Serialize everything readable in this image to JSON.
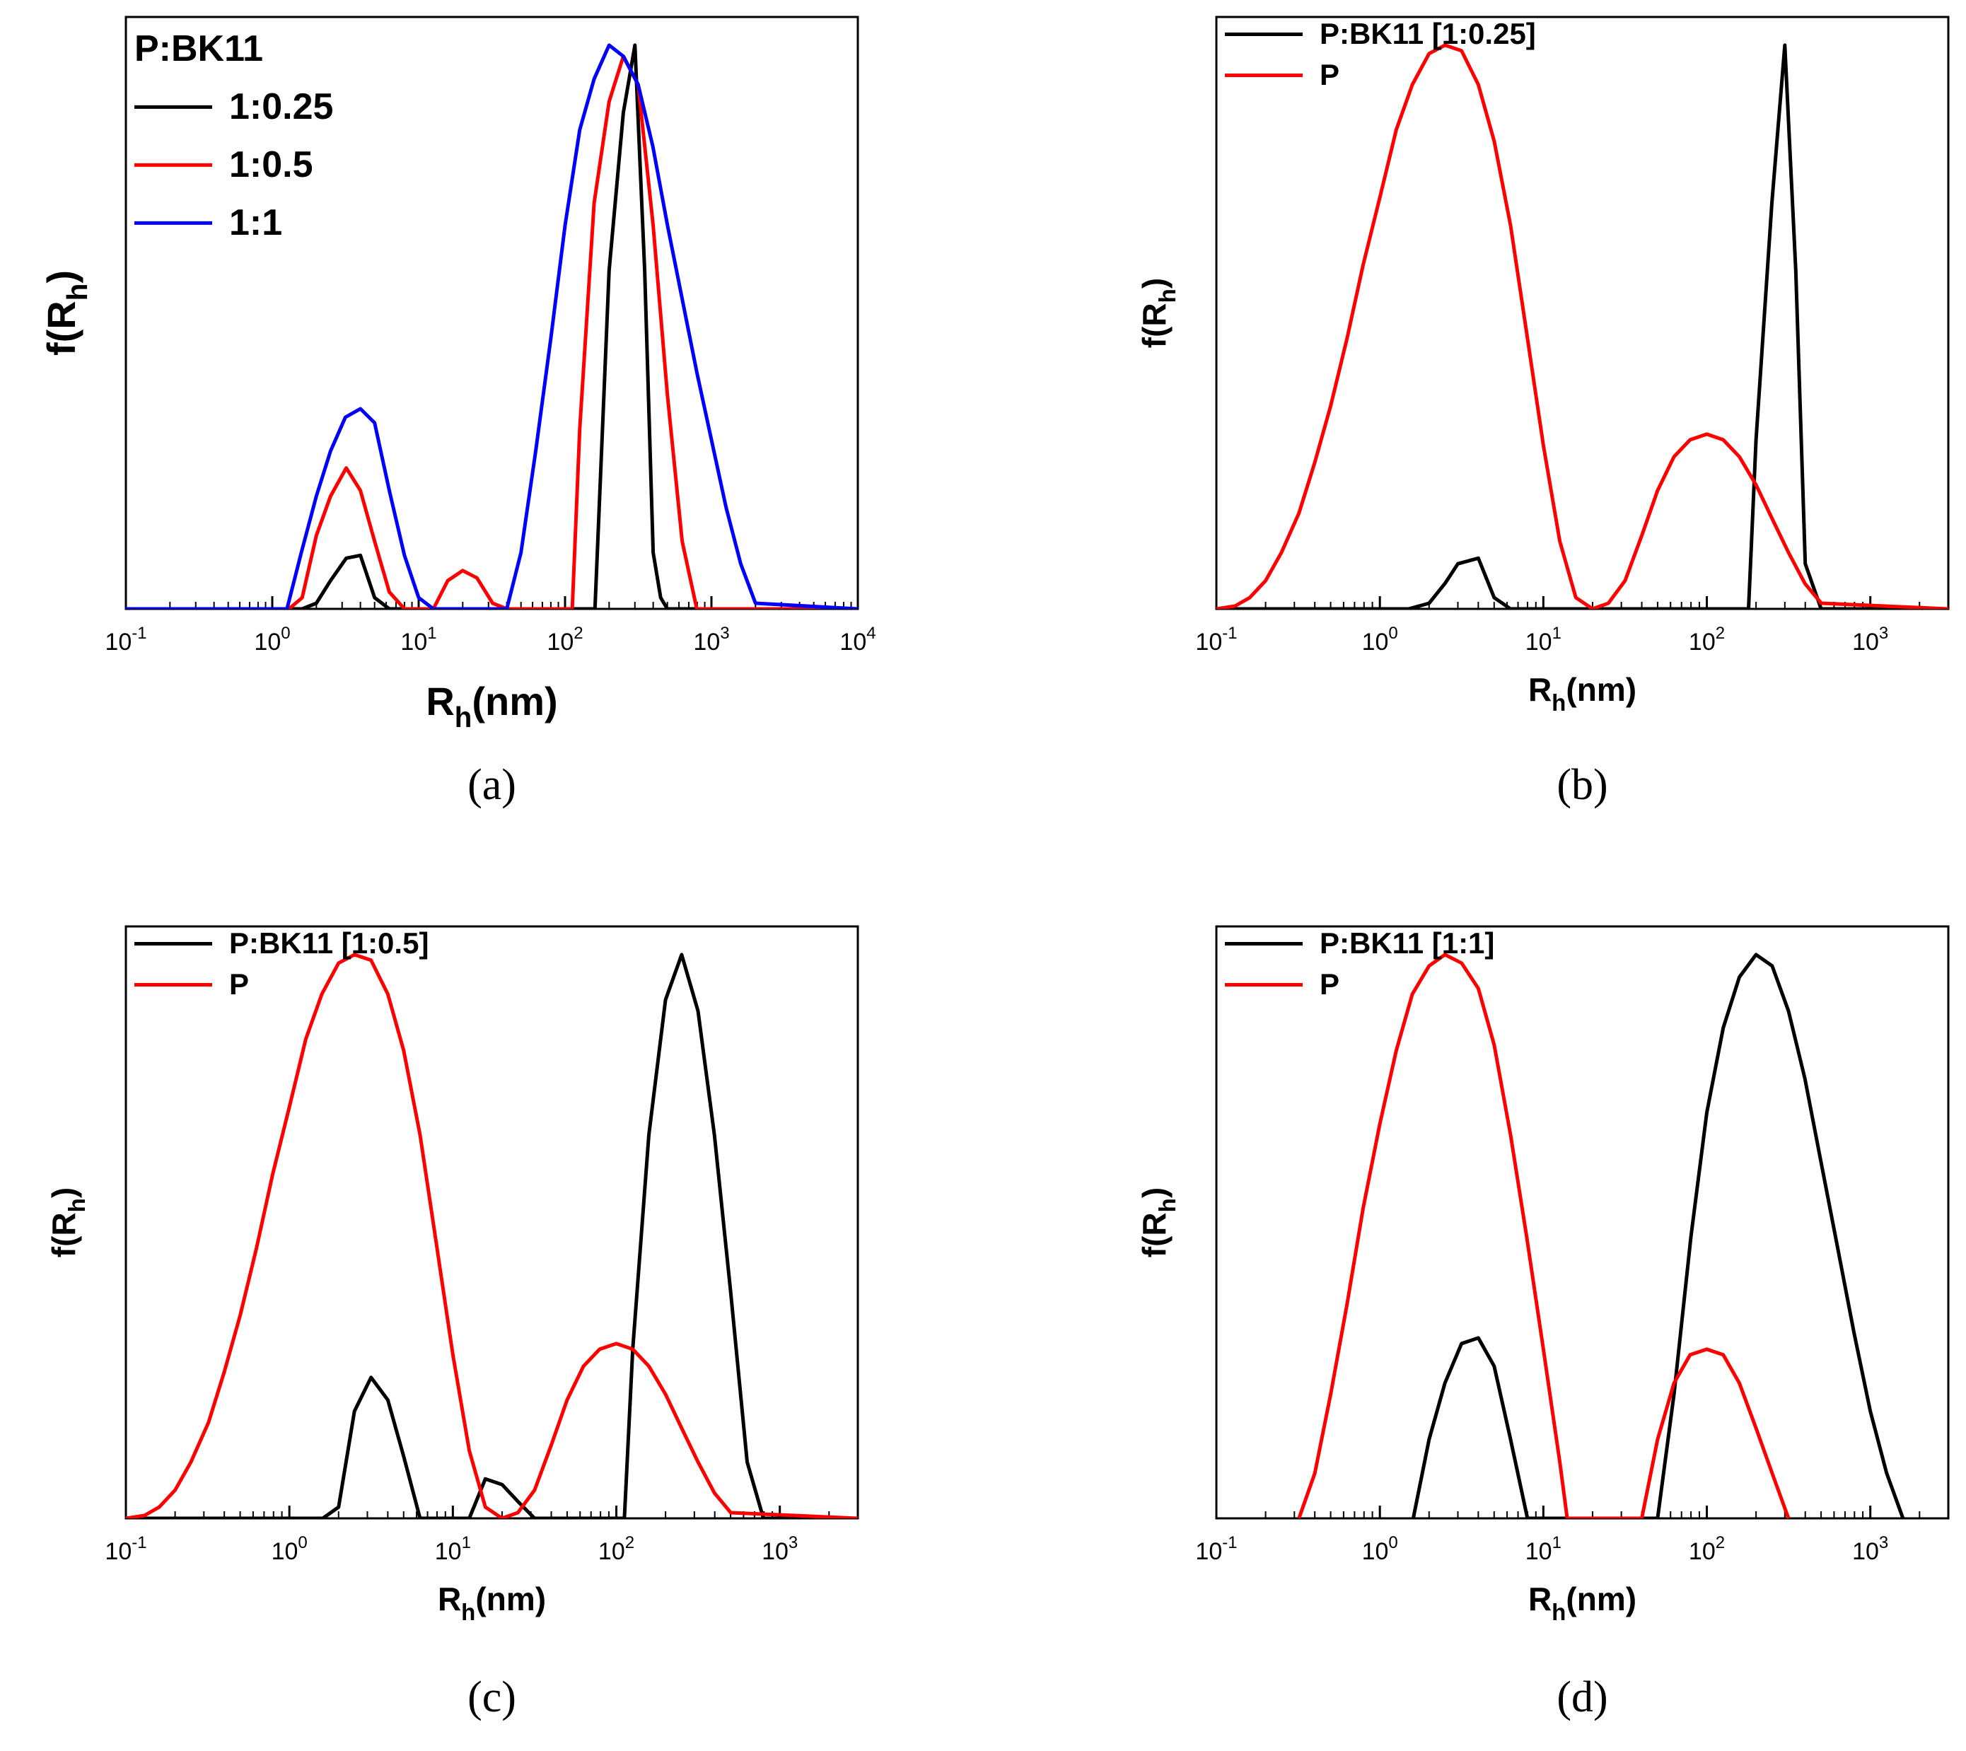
{
  "figure": {
    "colors": {
      "black": "#000000",
      "red": "#ff0000",
      "blue": "#0000ff"
    }
  },
  "chart_data": [
    {
      "id": "a",
      "type": "line",
      "panel_label": "(a)",
      "xscale": "log",
      "xlim": [
        0.1,
        10000
      ],
      "x_ticks": [
        {
          "value": 0.1,
          "base": "10",
          "exp": "-1"
        },
        {
          "value": 1,
          "base": "10",
          "exp": "0"
        },
        {
          "value": 10,
          "base": "10",
          "exp": "1"
        },
        {
          "value": 100,
          "base": "10",
          "exp": "2"
        },
        {
          "value": 1000,
          "base": "10",
          "exp": "3"
        },
        {
          "value": 10000,
          "base": "10",
          "exp": "4"
        }
      ],
      "ylim": [
        0,
        1.05
      ],
      "y_ticks_shown": false,
      "xlabel": {
        "main": "R",
        "sub": "h",
        "rest": "(nm)"
      },
      "ylabel": {
        "main": "f(R",
        "sub": "h",
        "rest": ")"
      },
      "legend_title": "P:BK11",
      "legend_position": "top-left",
      "series": [
        {
          "name": "1:0.25",
          "color": "#000000",
          "x": [
            0.1,
            1.6,
            2.0,
            2.5,
            3.2,
            4.0,
            5.0,
            6.3,
            8.0,
            100,
            160,
            200,
            250,
            300,
            350,
            400,
            450,
            500,
            10000
          ],
          "y": [
            0,
            0,
            0.01,
            0.05,
            0.09,
            0.095,
            0.02,
            0,
            0,
            0,
            0,
            0.6,
            0.88,
            1.0,
            0.6,
            0.1,
            0.02,
            0,
            0
          ]
        },
        {
          "name": "1:0.5",
          "color": "#ff0000",
          "x": [
            0.1,
            1.3,
            1.6,
            2.0,
            2.5,
            3.2,
            4.0,
            5.0,
            6.3,
            8.0,
            12.6,
            15.8,
            20,
            25,
            32,
            40,
            112,
            126,
            158,
            200,
            250,
            316,
            400,
            500,
            631,
            794,
            10000
          ],
          "y": [
            0,
            0,
            0.02,
            0.13,
            0.2,
            0.25,
            0.21,
            0.12,
            0.03,
            0,
            0,
            0.05,
            0.068,
            0.055,
            0.01,
            0,
            0,
            0.32,
            0.72,
            0.9,
            0.98,
            0.93,
            0.68,
            0.38,
            0.12,
            0,
            0
          ]
        },
        {
          "name": "1:1",
          "color": "#0000ff",
          "x": [
            0.1,
            1.26,
            1.58,
            2.0,
            2.5,
            3.16,
            4.0,
            5.0,
            6.3,
            8.0,
            10,
            12.6,
            40,
            50,
            63,
            80,
            100,
            126,
            158,
            200,
            251,
            316,
            398,
            501,
            631,
            794,
            1000,
            1259,
            1585,
            2000,
            10000
          ],
          "y": [
            0,
            0.0,
            0.1,
            0.2,
            0.28,
            0.34,
            0.355,
            0.33,
            0.21,
            0.095,
            0.02,
            0,
            0,
            0.1,
            0.28,
            0.48,
            0.68,
            0.85,
            0.94,
            1.0,
            0.98,
            0.93,
            0.82,
            0.68,
            0.55,
            0.42,
            0.3,
            0.18,
            0.08,
            0.01,
            0
          ]
        }
      ]
    },
    {
      "id": "b",
      "type": "line",
      "panel_label": "(b)",
      "xscale": "log",
      "xlim": [
        0.1,
        3000
      ],
      "x_ticks": [
        {
          "value": 0.1,
          "base": "10",
          "exp": "-1"
        },
        {
          "value": 1,
          "base": "10",
          "exp": "0"
        },
        {
          "value": 10,
          "base": "10",
          "exp": "1"
        },
        {
          "value": 100,
          "base": "10",
          "exp": "2"
        },
        {
          "value": 1000,
          "base": "10",
          "exp": "3"
        }
      ],
      "ylim": [
        0,
        1.05
      ],
      "y_ticks_shown": false,
      "xlabel": {
        "main": "R",
        "sub": "h",
        "rest": "(nm)"
      },
      "ylabel": {
        "main": "f(R",
        "sub": "h",
        "rest": ")"
      },
      "legend_title": "",
      "legend_position": "top-left",
      "series": [
        {
          "name": "P:BK11 [1:0.25]",
          "color": "#000000",
          "x": [
            0.1,
            1.5,
            2.0,
            2.5,
            3.0,
            4.0,
            5.0,
            6.3,
            8.0,
            180,
            200,
            250,
            300,
            350,
            400,
            500,
            3000
          ],
          "y": [
            0,
            0,
            0.01,
            0.045,
            0.08,
            0.09,
            0.02,
            0,
            0,
            0,
            0.3,
            0.72,
            1.0,
            0.6,
            0.08,
            0,
            0
          ]
        },
        {
          "name": "P",
          "color": "#ff0000",
          "x": [
            0.1,
            0.13,
            0.16,
            0.2,
            0.25,
            0.32,
            0.4,
            0.5,
            0.63,
            0.79,
            1.0,
            1.26,
            1.58,
            2.0,
            2.5,
            3.16,
            4.0,
            5.0,
            6.3,
            7.9,
            10,
            12.6,
            15.8,
            20,
            25,
            31.6,
            40,
            50,
            63,
            79,
            100,
            126,
            158,
            200,
            251,
            316,
            398,
            501,
            3000
          ],
          "y": [
            0,
            0.005,
            0.02,
            0.05,
            0.1,
            0.17,
            0.26,
            0.36,
            0.48,
            0.61,
            0.73,
            0.85,
            0.93,
            0.985,
            1.0,
            0.99,
            0.93,
            0.83,
            0.68,
            0.49,
            0.29,
            0.12,
            0.02,
            0,
            0.01,
            0.05,
            0.13,
            0.21,
            0.27,
            0.3,
            0.31,
            0.3,
            0.27,
            0.22,
            0.16,
            0.1,
            0.045,
            0.01,
            0
          ]
        }
      ]
    },
    {
      "id": "c",
      "type": "line",
      "panel_label": "(c)",
      "xscale": "log",
      "xlim": [
        0.1,
        3000
      ],
      "x_ticks": [
        {
          "value": 0.1,
          "base": "10",
          "exp": "-1"
        },
        {
          "value": 1,
          "base": "10",
          "exp": "0"
        },
        {
          "value": 10,
          "base": "10",
          "exp": "1"
        },
        {
          "value": 100,
          "base": "10",
          "exp": "2"
        },
        {
          "value": 1000,
          "base": "10",
          "exp": "3"
        }
      ],
      "ylim": [
        0,
        1.05
      ],
      "y_ticks_shown": false,
      "xlabel": {
        "main": "R",
        "sub": "h",
        "rest": "(nm)"
      },
      "ylabel": {
        "main": "f(R",
        "sub": "h",
        "rest": ")"
      },
      "legend_title": "",
      "legend_position": "top-left",
      "series": [
        {
          "name": "P:BK11 [1:0.5]",
          "color": "#000000",
          "x": [
            0.1,
            1.6,
            2.0,
            2.5,
            3.16,
            4.0,
            5.0,
            6.3,
            12.6,
            15.8,
            20,
            25,
            31.6,
            112,
            126,
            158,
            200,
            251,
            316,
            398,
            501,
            631,
            794,
            3000
          ],
          "y": [
            0,
            0,
            0.02,
            0.19,
            0.25,
            0.21,
            0.11,
            0,
            0,
            0.07,
            0.06,
            0.03,
            0,
            0,
            0.3,
            0.68,
            0.92,
            1.0,
            0.9,
            0.68,
            0.4,
            0.1,
            0,
            0
          ]
        },
        {
          "name": "P",
          "color": "#ff0000",
          "x": [
            0.1,
            0.13,
            0.16,
            0.2,
            0.25,
            0.32,
            0.4,
            0.5,
            0.63,
            0.79,
            1.0,
            1.26,
            1.58,
            2.0,
            2.5,
            3.16,
            4.0,
            5.0,
            6.3,
            7.9,
            10,
            12.6,
            15.8,
            20,
            25,
            31.6,
            40,
            50,
            63,
            79,
            100,
            126,
            158,
            200,
            251,
            316,
            398,
            501,
            3000
          ],
          "y": [
            0,
            0.005,
            0.02,
            0.05,
            0.1,
            0.17,
            0.26,
            0.36,
            0.48,
            0.61,
            0.73,
            0.85,
            0.93,
            0.985,
            1.0,
            0.99,
            0.93,
            0.83,
            0.68,
            0.49,
            0.29,
            0.12,
            0.02,
            0,
            0.01,
            0.05,
            0.13,
            0.21,
            0.27,
            0.3,
            0.31,
            0.3,
            0.27,
            0.22,
            0.16,
            0.1,
            0.045,
            0.01,
            0
          ]
        }
      ]
    },
    {
      "id": "d",
      "type": "line",
      "panel_label": "(d)",
      "xscale": "log",
      "xlim": [
        0.1,
        3000
      ],
      "x_ticks": [
        {
          "value": 0.1,
          "base": "10",
          "exp": "-1"
        },
        {
          "value": 1,
          "base": "10",
          "exp": "0"
        },
        {
          "value": 10,
          "base": "10",
          "exp": "1"
        },
        {
          "value": 100,
          "base": "10",
          "exp": "2"
        },
        {
          "value": 1000,
          "base": "10",
          "exp": "3"
        }
      ],
      "ylim": [
        0,
        1.05
      ],
      "y_ticks_shown": false,
      "xlabel": {
        "main": "R",
        "sub": "h",
        "rest": "(nm)"
      },
      "ylabel": {
        "main": "f(R",
        "sub": "h",
        "rest": ")"
      },
      "legend_title": "",
      "legend_position": "top-left",
      "series": [
        {
          "name": "P:BK11 [1:1]",
          "color": "#000000",
          "x": [
            1.6,
            2.0,
            2.5,
            3.16,
            4.0,
            5.0,
            6.3,
            8.0,
            50,
            63,
            80,
            100,
            126,
            158,
            200,
            251,
            316,
            398,
            501,
            631,
            794,
            1000,
            1259,
            1585
          ],
          "y": [
            0,
            0.14,
            0.24,
            0.31,
            0.32,
            0.27,
            0.14,
            0,
            0,
            0.22,
            0.5,
            0.72,
            0.87,
            0.96,
            1.0,
            0.98,
            0.9,
            0.78,
            0.63,
            0.48,
            0.33,
            0.19,
            0.08,
            0
          ]
        },
        {
          "name": "P",
          "color": "#ff0000",
          "x": [
            0.32,
            0.4,
            0.5,
            0.63,
            0.79,
            1.0,
            1.26,
            1.58,
            2.0,
            2.5,
            3.16,
            4.0,
            5.0,
            6.3,
            7.9,
            10,
            12.6,
            14,
            40,
            50,
            63,
            79,
            100,
            126,
            158,
            200,
            251,
            316
          ],
          "y": [
            0,
            0.08,
            0.22,
            0.38,
            0.55,
            0.7,
            0.83,
            0.93,
            0.98,
            1.0,
            0.985,
            0.94,
            0.84,
            0.68,
            0.5,
            0.3,
            0.1,
            0,
            0,
            0.14,
            0.24,
            0.29,
            0.3,
            0.29,
            0.24,
            0.16,
            0.08,
            0
          ]
        }
      ]
    }
  ]
}
